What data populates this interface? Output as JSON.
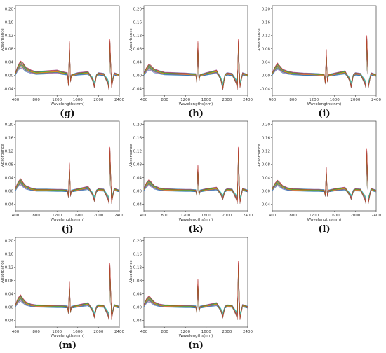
{
  "figure": {
    "y_ticks": [
      "0.20",
      "0.16",
      "0.12",
      "0.08",
      "0.04",
      "0.00",
      "-0.04"
    ],
    "x_ticks": [
      "400",
      "800",
      "1200",
      "1600",
      "2000",
      "2400"
    ],
    "series_colors": [
      "#1f77b4",
      "#ff7f0e",
      "#2ca02c",
      "#d62728",
      "#9467bd",
      "#8c564b",
      "#e377c2",
      "#7f7f7f",
      "#bcbd22",
      "#17becf"
    ]
  },
  "chart_data": [
    {
      "type": "line",
      "panel_label": "(g)",
      "xlabel": "Wavelengths(nm)",
      "ylabel": "Absorbance",
      "xlim": [
        400,
        2400
      ],
      "ylim": [
        -0.06,
        0.21
      ],
      "series_count": "many overlaid spectra",
      "x": [
        400,
        450,
        500,
        550,
        600,
        700,
        800,
        1000,
        1200,
        1300,
        1400,
        1420,
        1440,
        1460,
        1480,
        1600,
        1800,
        1880,
        1920,
        1960,
        2000,
        2100,
        2180,
        2200,
        2220,
        2250,
        2300,
        2400
      ],
      "y": [
        0.005,
        0.025,
        0.035,
        0.03,
        0.02,
        0.012,
        0.008,
        0.01,
        0.012,
        0.008,
        0.005,
        -0.025,
        0.085,
        -0.015,
        0.0,
        0.005,
        0.008,
        -0.01,
        -0.03,
        0.0,
        0.005,
        0.003,
        -0.02,
        -0.035,
        0.09,
        -0.03,
        0.005,
        0.0
      ]
    },
    {
      "type": "line",
      "panel_label": "(h)",
      "xlabel": "Wavelengths(nm)",
      "ylabel": "Absorbance",
      "xlim": [
        400,
        2400
      ],
      "ylim": [
        -0.06,
        0.21
      ],
      "series_count": "many overlaid spectra",
      "x": [
        400,
        450,
        500,
        550,
        600,
        700,
        800,
        1000,
        1200,
        1300,
        1400,
        1420,
        1440,
        1460,
        1480,
        1600,
        1800,
        1880,
        1920,
        1960,
        2000,
        2100,
        2180,
        2200,
        2220,
        2250,
        2300,
        2400
      ],
      "y": [
        0.005,
        0.018,
        0.028,
        0.022,
        0.015,
        0.01,
        0.006,
        0.005,
        0.004,
        0.003,
        0.002,
        -0.02,
        0.085,
        -0.015,
        0.0,
        0.005,
        0.012,
        -0.01,
        -0.035,
        0.0,
        0.005,
        0.003,
        -0.02,
        -0.035,
        0.09,
        -0.03,
        0.005,
        0.0
      ]
    },
    {
      "type": "line",
      "panel_label": "(i)",
      "xlabel": "Wavelengths(nm)",
      "ylabel": "Absorbance",
      "xlim": [
        400,
        2400
      ],
      "ylim": [
        -0.06,
        0.21
      ],
      "series_count": "many overlaid spectra",
      "x": [
        400,
        450,
        500,
        550,
        600,
        700,
        800,
        1000,
        1200,
        1300,
        1400,
        1420,
        1440,
        1460,
        1480,
        1600,
        1800,
        1880,
        1920,
        1960,
        2000,
        2100,
        2180,
        2200,
        2220,
        2250,
        2300,
        2400
      ],
      "y": [
        0.005,
        0.02,
        0.03,
        0.022,
        0.014,
        0.009,
        0.006,
        0.004,
        0.003,
        0.002,
        0.001,
        -0.02,
        0.065,
        -0.015,
        0.0,
        0.004,
        0.01,
        -0.01,
        -0.03,
        0.0,
        0.005,
        0.003,
        -0.02,
        -0.03,
        0.1,
        -0.03,
        0.005,
        0.0
      ]
    },
    {
      "type": "line",
      "panel_label": "(j)",
      "xlabel": "Wavelengths(nm)",
      "ylabel": "Absorbance",
      "xlim": [
        400,
        2400
      ],
      "ylim": [
        -0.06,
        0.21
      ],
      "series_count": "many overlaid spectra",
      "x": [
        400,
        450,
        500,
        550,
        600,
        700,
        800,
        1000,
        1200,
        1300,
        1400,
        1420,
        1440,
        1460,
        1480,
        1600,
        1800,
        1880,
        1920,
        1960,
        2000,
        2100,
        2180,
        2200,
        2220,
        2250,
        2300,
        2400
      ],
      "y": [
        0.005,
        0.022,
        0.03,
        0.02,
        0.012,
        0.006,
        0.003,
        0.003,
        0.002,
        0.002,
        0.001,
        -0.015,
        0.07,
        -0.012,
        0.0,
        0.004,
        0.01,
        -0.008,
        -0.025,
        0.0,
        0.004,
        0.003,
        -0.02,
        -0.03,
        0.11,
        -0.03,
        0.005,
        0.0
      ]
    },
    {
      "type": "line",
      "panel_label": "(k)",
      "xlabel": "Wavelengths(nm)",
      "ylabel": "Absorbance",
      "xlim": [
        400,
        2400
      ],
      "ylim": [
        -0.06,
        0.21
      ],
      "series_count": "many overlaid spectra",
      "x": [
        400,
        450,
        500,
        550,
        600,
        700,
        800,
        1000,
        1200,
        1300,
        1400,
        1420,
        1440,
        1460,
        1480,
        1600,
        1800,
        1880,
        1920,
        1960,
        2000,
        2100,
        2180,
        2200,
        2220,
        2250,
        2300,
        2400
      ],
      "y": [
        0.005,
        0.02,
        0.028,
        0.02,
        0.012,
        0.006,
        0.004,
        0.003,
        0.002,
        0.002,
        0.001,
        -0.012,
        0.065,
        -0.012,
        0.0,
        0.004,
        0.008,
        -0.008,
        -0.02,
        0.0,
        0.004,
        0.003,
        -0.02,
        -0.03,
        0.11,
        -0.03,
        0.005,
        0.0
      ]
    },
    {
      "type": "line",
      "panel_label": "(l)",
      "xlabel": "Wavelengths(nm)",
      "ylabel": "Absorbance",
      "xlim": [
        400,
        2400
      ],
      "ylim": [
        -0.06,
        0.21
      ],
      "series_count": "many overlaid spectra",
      "x": [
        400,
        450,
        500,
        550,
        600,
        700,
        800,
        1000,
        1200,
        1300,
        1400,
        1420,
        1440,
        1460,
        1480,
        1600,
        1800,
        1880,
        1920,
        1960,
        2000,
        2100,
        2180,
        2200,
        2220,
        2250,
        2300,
        2400
      ],
      "y": [
        0.005,
        0.018,
        0.026,
        0.02,
        0.012,
        0.006,
        0.004,
        0.003,
        0.002,
        0.002,
        0.001,
        -0.012,
        0.06,
        -0.012,
        0.0,
        0.004,
        0.008,
        -0.008,
        -0.02,
        0.0,
        0.004,
        0.003,
        -0.02,
        -0.03,
        0.105,
        -0.03,
        0.005,
        0.0
      ]
    },
    {
      "type": "line",
      "panel_label": "(m)",
      "xlabel": "Wavelengths(nm)",
      "ylabel": "Absorbance",
      "xlim": [
        400,
        2400
      ],
      "ylim": [
        -0.06,
        0.21
      ],
      "series_count": "many overlaid spectra",
      "x": [
        400,
        450,
        500,
        550,
        600,
        700,
        800,
        1000,
        1200,
        1300,
        1400,
        1420,
        1440,
        1460,
        1480,
        1600,
        1800,
        1880,
        1920,
        1960,
        2000,
        2100,
        2180,
        2200,
        2220,
        2250,
        2300,
        2400
      ],
      "y": [
        0.005,
        0.022,
        0.03,
        0.02,
        0.012,
        0.006,
        0.004,
        0.003,
        0.002,
        0.002,
        0.001,
        -0.015,
        0.065,
        -0.012,
        0.0,
        0.004,
        0.01,
        -0.008,
        -0.025,
        0.0,
        0.004,
        0.003,
        -0.02,
        -0.03,
        0.11,
        -0.03,
        0.005,
        0.0
      ]
    },
    {
      "type": "line",
      "panel_label": "(n)",
      "xlabel": "Wavelengths(nm)",
      "ylabel": "Absorbance",
      "xlim": [
        400,
        2400
      ],
      "ylim": [
        -0.06,
        0.21
      ],
      "series_count": "many overlaid spectra",
      "x": [
        400,
        450,
        500,
        550,
        600,
        700,
        800,
        1000,
        1200,
        1300,
        1400,
        1420,
        1440,
        1460,
        1480,
        1600,
        1800,
        1880,
        1920,
        1960,
        2000,
        2100,
        2180,
        2200,
        2220,
        2250,
        2300,
        2400
      ],
      "y": [
        0.005,
        0.02,
        0.028,
        0.02,
        0.012,
        0.006,
        0.004,
        0.003,
        0.002,
        0.002,
        0.001,
        -0.015,
        0.07,
        -0.012,
        0.0,
        0.004,
        0.01,
        -0.008,
        -0.025,
        0.0,
        0.004,
        0.003,
        -0.02,
        -0.03,
        0.115,
        -0.03,
        0.005,
        0.0
      ]
    }
  ]
}
